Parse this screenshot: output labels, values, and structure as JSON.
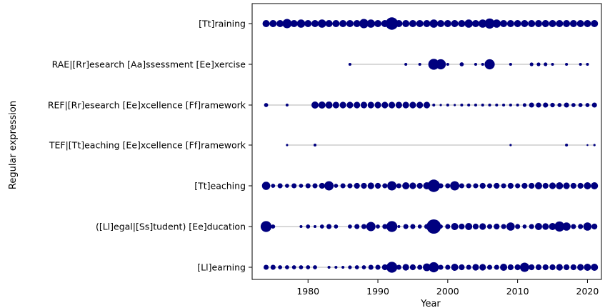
{
  "chart_data": {
    "type": "scatter",
    "title": "",
    "xlabel": "Year",
    "ylabel": "Regular expression",
    "xlim": [
      1972,
      2022
    ],
    "xticks": [
      1980,
      1990,
      2000,
      2010,
      2020
    ],
    "grid": false,
    "marker_color": "#00007f",
    "line_color": "#b3b3b3",
    "size_note": "marker area proportional to count",
    "series": [
      {
        "name": "[Tt]raining",
        "points": [
          [
            1974,
            3
          ],
          [
            1975,
            3
          ],
          [
            1976,
            3
          ],
          [
            1977,
            5
          ],
          [
            1978,
            3
          ],
          [
            1979,
            4
          ],
          [
            1980,
            3
          ],
          [
            1981,
            3
          ],
          [
            1982,
            4
          ],
          [
            1983,
            3
          ],
          [
            1984,
            3
          ],
          [
            1985,
            3
          ],
          [
            1986,
            3
          ],
          [
            1987,
            3
          ],
          [
            1988,
            5
          ],
          [
            1989,
            4
          ],
          [
            1990,
            3
          ],
          [
            1991,
            3
          ],
          [
            1992,
            9
          ],
          [
            1993,
            3
          ],
          [
            1994,
            3
          ],
          [
            1995,
            3
          ],
          [
            1996,
            3
          ],
          [
            1997,
            3
          ],
          [
            1998,
            4
          ],
          [
            1999,
            3
          ],
          [
            2000,
            3
          ],
          [
            2001,
            3
          ],
          [
            2002,
            3
          ],
          [
            2003,
            4
          ],
          [
            2004,
            3
          ],
          [
            2005,
            4
          ],
          [
            2006,
            6
          ],
          [
            2007,
            4
          ],
          [
            2008,
            3
          ],
          [
            2009,
            3
          ],
          [
            2010,
            3
          ],
          [
            2011,
            3
          ],
          [
            2012,
            3
          ],
          [
            2013,
            3
          ],
          [
            2014,
            3
          ],
          [
            2015,
            3
          ],
          [
            2016,
            3
          ],
          [
            2017,
            3
          ],
          [
            2018,
            3
          ],
          [
            2019,
            3
          ],
          [
            2020,
            3
          ],
          [
            2021,
            3
          ]
        ]
      },
      {
        "name": "RAE|[Rr]esearch [Aa]ssessment [Ee]xercise",
        "points": [
          [
            1986,
            0.5
          ],
          [
            1994,
            0.5
          ],
          [
            1996,
            0.5
          ],
          [
            1998,
            7
          ],
          [
            1999,
            6
          ],
          [
            2000,
            0.5
          ],
          [
            2002,
            1
          ],
          [
            2004,
            0.5
          ],
          [
            2005,
            0.5
          ],
          [
            2006,
            6
          ],
          [
            2009,
            0.5
          ],
          [
            2012,
            0.8
          ],
          [
            2013,
            0.8
          ],
          [
            2014,
            0.8
          ],
          [
            2015,
            0.5
          ],
          [
            2017,
            0.5
          ],
          [
            2019,
            0.5
          ],
          [
            2020,
            0.5
          ]
        ]
      },
      {
        "name": "REF|[Rr]esearch [Ee]xcellence [Ff]ramework",
        "points": [
          [
            1974,
            1
          ],
          [
            1977,
            0.5
          ],
          [
            1981,
            3
          ],
          [
            1982,
            3
          ],
          [
            1983,
            3
          ],
          [
            1984,
            2.5
          ],
          [
            1985,
            2.5
          ],
          [
            1986,
            2.5
          ],
          [
            1987,
            2.5
          ],
          [
            1988,
            2.5
          ],
          [
            1989,
            2.5
          ],
          [
            1990,
            2.5
          ],
          [
            1991,
            2.5
          ],
          [
            1992,
            2.5
          ],
          [
            1993,
            2.5
          ],
          [
            1994,
            2.5
          ],
          [
            1995,
            2.5
          ],
          [
            1996,
            2.5
          ],
          [
            1997,
            2.5
          ],
          [
            1998,
            0.5
          ],
          [
            1999,
            0.3
          ],
          [
            2000,
            0.5
          ],
          [
            2001,
            0.3
          ],
          [
            2002,
            0.5
          ],
          [
            2003,
            0.5
          ],
          [
            2004,
            0.5
          ],
          [
            2005,
            0.5
          ],
          [
            2006,
            0.5
          ],
          [
            2007,
            0.5
          ],
          [
            2008,
            0.5
          ],
          [
            2009,
            0.5
          ],
          [
            2010,
            0.5
          ],
          [
            2011,
            0.8
          ],
          [
            2012,
            1.5
          ],
          [
            2013,
            1.5
          ],
          [
            2014,
            1.5
          ],
          [
            2015,
            1.2
          ],
          [
            2016,
            1
          ],
          [
            2017,
            1.5
          ],
          [
            2018,
            1
          ],
          [
            2019,
            1
          ],
          [
            2020,
            1
          ],
          [
            2021,
            1.5
          ]
        ]
      },
      {
        "name": "TEF|[Tt]eaching [Ee]xcellence [Ff]ramework",
        "points": [
          [
            1977,
            0.3
          ],
          [
            1981,
            0.5
          ],
          [
            2009,
            0.3
          ],
          [
            2017,
            0.5
          ],
          [
            2020,
            0.2
          ],
          [
            2021,
            0.3
          ]
        ]
      },
      {
        "name": "[Tt]eaching",
        "points": [
          [
            1974,
            4
          ],
          [
            1975,
            1
          ],
          [
            1976,
            1.5
          ],
          [
            1977,
            1
          ],
          [
            1978,
            1.5
          ],
          [
            1979,
            1
          ],
          [
            1980,
            1.5
          ],
          [
            1981,
            1.5
          ],
          [
            1982,
            2
          ],
          [
            1983,
            5
          ],
          [
            1984,
            1
          ],
          [
            1985,
            1.5
          ],
          [
            1986,
            1.5
          ],
          [
            1987,
            2
          ],
          [
            1988,
            2
          ],
          [
            1989,
            2.5
          ],
          [
            1990,
            2
          ],
          [
            1991,
            1.5
          ],
          [
            1992,
            5
          ],
          [
            1993,
            1.5
          ],
          [
            1994,
            3
          ],
          [
            1995,
            2.5
          ],
          [
            1996,
            2
          ],
          [
            1997,
            3
          ],
          [
            1998,
            9
          ],
          [
            1999,
            1.5
          ],
          [
            2000,
            1.5
          ],
          [
            2001,
            5
          ],
          [
            2002,
            1.5
          ],
          [
            2003,
            1.5
          ],
          [
            2004,
            1.5
          ],
          [
            2005,
            2
          ],
          [
            2006,
            1.5
          ],
          [
            2007,
            2
          ],
          [
            2008,
            1.5
          ],
          [
            2009,
            2
          ],
          [
            2010,
            1.5
          ],
          [
            2011,
            2
          ],
          [
            2012,
            2
          ],
          [
            2013,
            3
          ],
          [
            2014,
            2
          ],
          [
            2015,
            2.5
          ],
          [
            2016,
            3
          ],
          [
            2017,
            2.5
          ],
          [
            2018,
            2
          ],
          [
            2019,
            2
          ],
          [
            2020,
            3
          ],
          [
            2021,
            3
          ]
        ]
      },
      {
        "name": "([Ll]egal|[Ss]tudent) [Ee]ducation",
        "points": [
          [
            1974,
            7
          ],
          [
            1975,
            1
          ],
          [
            1979,
            0.5
          ],
          [
            1980,
            1
          ],
          [
            1981,
            0.5
          ],
          [
            1982,
            1
          ],
          [
            1983,
            1.5
          ],
          [
            1984,
            1
          ],
          [
            1986,
            1
          ],
          [
            1987,
            1.5
          ],
          [
            1988,
            1.5
          ],
          [
            1989,
            5
          ],
          [
            1990,
            1
          ],
          [
            1991,
            1.5
          ],
          [
            1992,
            7
          ],
          [
            1993,
            0.5
          ],
          [
            1994,
            1.5
          ],
          [
            1995,
            1.5
          ],
          [
            1996,
            1
          ],
          [
            1997,
            1.5
          ],
          [
            1998,
            12
          ],
          [
            1999,
            1
          ],
          [
            2000,
            1.5
          ],
          [
            2001,
            3
          ],
          [
            2002,
            2
          ],
          [
            2003,
            3
          ],
          [
            2004,
            2
          ],
          [
            2005,
            2.5
          ],
          [
            2006,
            1.5
          ],
          [
            2007,
            2
          ],
          [
            2008,
            1.5
          ],
          [
            2009,
            4
          ],
          [
            2010,
            1.5
          ],
          [
            2011,
            1
          ],
          [
            2012,
            1.5
          ],
          [
            2013,
            3
          ],
          [
            2014,
            2.5
          ],
          [
            2015,
            3
          ],
          [
            2016,
            6
          ],
          [
            2017,
            4
          ],
          [
            2018,
            1.5
          ],
          [
            2019,
            1.5
          ],
          [
            2020,
            4
          ],
          [
            2021,
            2
          ]
        ]
      },
      {
        "name": "[Ll]earning",
        "points": [
          [
            1974,
            1.5
          ],
          [
            1975,
            1.5
          ],
          [
            1976,
            1
          ],
          [
            1977,
            1
          ],
          [
            1978,
            1
          ],
          [
            1979,
            1
          ],
          [
            1980,
            1
          ],
          [
            1981,
            1
          ],
          [
            1983,
            0.5
          ],
          [
            1984,
            0.5
          ],
          [
            1985,
            0.5
          ],
          [
            1986,
            0.8
          ],
          [
            1987,
            1
          ],
          [
            1988,
            1
          ],
          [
            1989,
            1.5
          ],
          [
            1990,
            1.5
          ],
          [
            1991,
            2
          ],
          [
            1992,
            7
          ],
          [
            1993,
            1.5
          ],
          [
            1994,
            2.5
          ],
          [
            1995,
            2
          ],
          [
            1996,
            1.5
          ],
          [
            1997,
            3.5
          ],
          [
            1998,
            6
          ],
          [
            1999,
            1.5
          ],
          [
            2000,
            1.5
          ],
          [
            2001,
            3
          ],
          [
            2002,
            2
          ],
          [
            2003,
            1.5
          ],
          [
            2004,
            2.5
          ],
          [
            2005,
            2.5
          ],
          [
            2006,
            1.5
          ],
          [
            2007,
            1.5
          ],
          [
            2008,
            3
          ],
          [
            2009,
            2
          ],
          [
            2010,
            2
          ],
          [
            2011,
            5
          ],
          [
            2012,
            2
          ],
          [
            2013,
            2
          ],
          [
            2014,
            2
          ],
          [
            2015,
            2
          ],
          [
            2016,
            2.5
          ],
          [
            2017,
            2
          ],
          [
            2018,
            2
          ],
          [
            2019,
            2.5
          ],
          [
            2020,
            3
          ],
          [
            2021,
            3
          ]
        ]
      }
    ]
  }
}
